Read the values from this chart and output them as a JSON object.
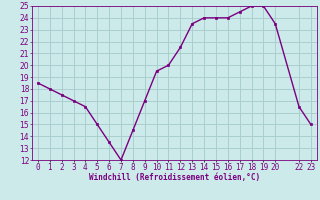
{
  "x": [
    0,
    1,
    2,
    3,
    4,
    5,
    6,
    7,
    8,
    9,
    10,
    11,
    12,
    13,
    14,
    15,
    16,
    17,
    18,
    19,
    20,
    22,
    23
  ],
  "y": [
    18.5,
    18.0,
    17.5,
    17.0,
    16.5,
    15.0,
    13.5,
    12.0,
    14.5,
    17.0,
    19.5,
    20.0,
    21.5,
    23.5,
    24.0,
    24.0,
    24.0,
    24.5,
    25.0,
    25.0,
    23.5,
    16.5,
    15.0
  ],
  "line_color": "#7b0080",
  "marker_color": "#7b0080",
  "bg_color": "#cceaea",
  "grid_color": "#aacece",
  "tick_color": "#7b0080",
  "xlabel": "Windchill (Refroidissement éolien,°C)",
  "xlim": [
    -0.5,
    23.5
  ],
  "ylim": [
    12,
    25
  ],
  "yticks": [
    12,
    13,
    14,
    15,
    16,
    17,
    18,
    19,
    20,
    21,
    22,
    23,
    24,
    25
  ],
  "xtick_positions": [
    0,
    1,
    2,
    3,
    4,
    5,
    6,
    7,
    8,
    9,
    10,
    11,
    12,
    13,
    14,
    15,
    16,
    17,
    18,
    19,
    20,
    22,
    23
  ],
  "xtick_labels": [
    "0",
    "1",
    "2",
    "3",
    "4",
    "5",
    "6",
    "7",
    "8",
    "9",
    "10",
    "11",
    "12",
    "13",
    "14",
    "15",
    "16",
    "17",
    "18",
    "19",
    "20",
    "22",
    "23"
  ]
}
